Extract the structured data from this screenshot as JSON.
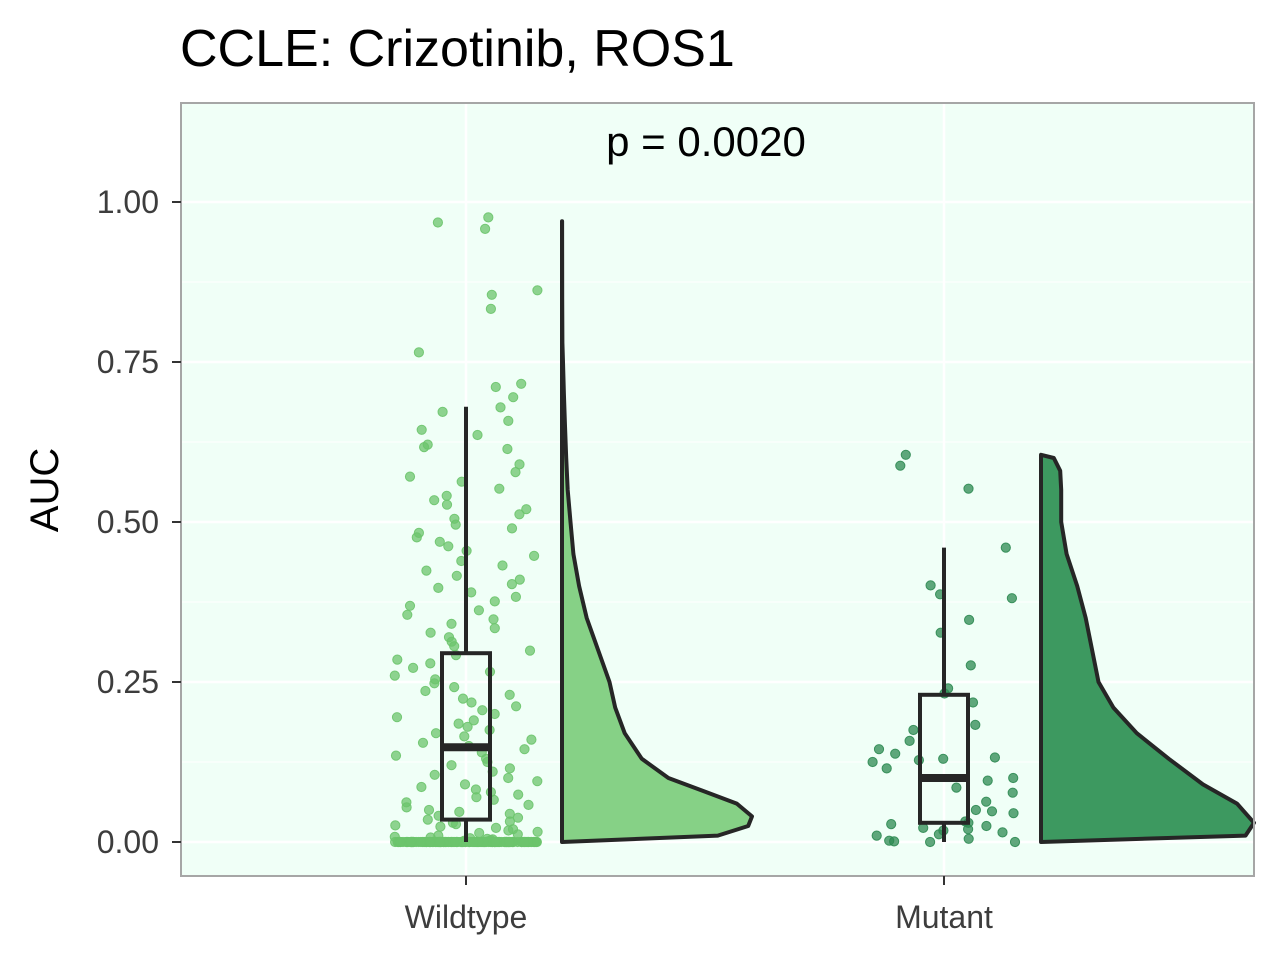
{
  "chart_data": {
    "type": "raincloud",
    "title": "CCLE: Crizotinib, ROS1",
    "xlabel": "",
    "ylabel": "AUC",
    "ylim": [
      -0.05,
      1.16
    ],
    "yticks": [
      0.0,
      0.25,
      0.5,
      0.75,
      1.0
    ],
    "ytick_labels": [
      "0.00",
      "0.25",
      "0.50",
      "0.75",
      "1.00"
    ],
    "categories": [
      "Wildtype",
      "Mutant"
    ],
    "annotation": "p = 0.0020",
    "grid": true,
    "legend": "none",
    "colors": {
      "panel_bg": "#f0fff7",
      "grid": "#ffffff",
      "border": "#a6a6a6",
      "outline": "#262626",
      "Wildtype": "#86d186",
      "Wildtype_points": "#6cc46c",
      "Mutant": "#3d9960",
      "Mutant_points": "#2e8a52"
    },
    "series": [
      {
        "name": "Wildtype",
        "box": {
          "q1": 0.035,
          "median": 0.148,
          "q3": 0.295,
          "whisker_low": 0.0,
          "whisker_high": 0.68
        },
        "density": [
          [
            0.0,
            0.0
          ],
          [
            0.01,
            0.82
          ],
          [
            0.025,
            0.98
          ],
          [
            0.04,
            1.0
          ],
          [
            0.06,
            0.92
          ],
          [
            0.08,
            0.74
          ],
          [
            0.1,
            0.56
          ],
          [
            0.13,
            0.42
          ],
          [
            0.17,
            0.33
          ],
          [
            0.21,
            0.28
          ],
          [
            0.25,
            0.25
          ],
          [
            0.3,
            0.19
          ],
          [
            0.35,
            0.13
          ],
          [
            0.4,
            0.09
          ],
          [
            0.45,
            0.06
          ],
          [
            0.5,
            0.045
          ],
          [
            0.55,
            0.03
          ],
          [
            0.6,
            0.022
          ],
          [
            0.65,
            0.016
          ],
          [
            0.7,
            0.01
          ],
          [
            0.75,
            0.005
          ],
          [
            0.78,
            0.002
          ],
          [
            0.85,
            0.001
          ],
          [
            0.97,
            0.0005
          ]
        ],
        "points": [
          0.976,
          0.968,
          0.958,
          0.862,
          0.855,
          0.833,
          0.765,
          0.716,
          0.711,
          0.695,
          0.679,
          0.672,
          0.658,
          0.644,
          0.636,
          0.621,
          0.617,
          0.614,
          0.59,
          0.578,
          0.571,
          0.563,
          0.552,
          0.541,
          0.534,
          0.527,
          0.52,
          0.512,
          0.505,
          0.496,
          0.49,
          0.483,
          0.476,
          0.469,
          0.462,
          0.455,
          0.447,
          0.439,
          0.432,
          0.424,
          0.416,
          0.41,
          0.403,
          0.397,
          0.39,
          0.383,
          0.376,
          0.369,
          0.362,
          0.355,
          0.348,
          0.341,
          0.334,
          0.327,
          0.32,
          0.313,
          0.306,
          0.299,
          0.292,
          0.285,
          0.279,
          0.272,
          0.266,
          0.26,
          0.254,
          0.248,
          0.242,
          0.236,
          0.23,
          0.224,
          0.218,
          0.212,
          0.206,
          0.2,
          0.195,
          0.19,
          0.185,
          0.18,
          0.175,
          0.17,
          0.165,
          0.16,
          0.155,
          0.15,
          0.145,
          0.14,
          0.135,
          0.13,
          0.125,
          0.12,
          0.115,
          0.11,
          0.105,
          0.1,
          0.095,
          0.09,
          0.086,
          0.082,
          0.078,
          0.074,
          0.07,
          0.066,
          0.062,
          0.058,
          0.054,
          0.05,
          0.047,
          0.044,
          0.041,
          0.038,
          0.035,
          0.032,
          0.03,
          0.028,
          0.026,
          0.024,
          0.022,
          0.02,
          0.018,
          0.016,
          0.014,
          0.012,
          0.01,
          0.008,
          0.007,
          0.006,
          0.005,
          0.004,
          0.003,
          0.002,
          0.001,
          0.0,
          0.0,
          0.0,
          0.0,
          0.0,
          0.0,
          0.0,
          0.0,
          0.0,
          0.0,
          0.0,
          0.0,
          0.0,
          0.0,
          0.0,
          0.0,
          0.0,
          0.0,
          0.0,
          0.0,
          0.0,
          0.0,
          0.0,
          0.0,
          0.0,
          0.0,
          0.0,
          0.0,
          0.0,
          0.0,
          0.0,
          0.0,
          0.0,
          0.0,
          0.0,
          0.0,
          0.0,
          0.0,
          0.0,
          0.0,
          0.0,
          0.0,
          0.0,
          0.0,
          0.0,
          0.0,
          0.0,
          0.0,
          0.0,
          0.0,
          0.0,
          0.0,
          0.0,
          0.0,
          0.0,
          0.0,
          0.0,
          0.0,
          0.0,
          0.0,
          0.0,
          0.0,
          0.0,
          0.0,
          0.0,
          0.0,
          0.0,
          0.0,
          0.0,
          0.0,
          0.0,
          0.0,
          0.0,
          0.0,
          0.0,
          0.0,
          0.0,
          0.0,
          0.0,
          0.0,
          0.0,
          0.0,
          0.0,
          0.0,
          0.0,
          0.0,
          0.0,
          0.0,
          0.0,
          0.0,
          0.0,
          0.0,
          0.0,
          0.0,
          0.0,
          0.0,
          0.0,
          0.0,
          0.0,
          0.0,
          0.0,
          0.0,
          0.0,
          0.0,
          0.0,
          0.0,
          0.0,
          0.0,
          0.0,
          0.0,
          0.0,
          0.0,
          0.0,
          0.0,
          0.0,
          0.0,
          0.0,
          0.0,
          0.0,
          0.0,
          0.0,
          0.0,
          0.0,
          0.0,
          0.0,
          0.0,
          0.0,
          0.0,
          0.0,
          0.0,
          0.0,
          0.0,
          0.0,
          0.0,
          0.0,
          0.0,
          0.0,
          0.0,
          0.0,
          0.0,
          0.0,
          0.0,
          0.0,
          0.0,
          0.0,
          0.0,
          0.0,
          0.0,
          0.0,
          0.0,
          0.0,
          0.0,
          0.0,
          0.0,
          0.0,
          0.0,
          0.0,
          0.0,
          0.0,
          0.0,
          0.0,
          0.0,
          0.0
        ]
      },
      {
        "name": "Mutant",
        "box": {
          "q1": 0.03,
          "median": 0.1,
          "q3": 0.23,
          "whisker_low": 0.0,
          "whisker_high": 0.46
        },
        "density": [
          [
            0.0,
            0.0
          ],
          [
            0.01,
            0.96
          ],
          [
            0.03,
            1.0
          ],
          [
            0.06,
            0.92
          ],
          [
            0.09,
            0.76
          ],
          [
            0.13,
            0.6
          ],
          [
            0.17,
            0.45
          ],
          [
            0.21,
            0.34
          ],
          [
            0.25,
            0.27
          ],
          [
            0.3,
            0.24
          ],
          [
            0.35,
            0.21
          ],
          [
            0.4,
            0.17
          ],
          [
            0.45,
            0.12
          ],
          [
            0.5,
            0.095
          ],
          [
            0.55,
            0.095
          ],
          [
            0.58,
            0.09
          ],
          [
            0.6,
            0.06
          ],
          [
            0.605,
            0.0
          ]
        ],
        "points": [
          0.605,
          0.588,
          0.552,
          0.46,
          0.401,
          0.387,
          0.381,
          0.347,
          0.327,
          0.276,
          0.24,
          0.232,
          0.218,
          0.183,
          0.175,
          0.158,
          0.145,
          0.138,
          0.132,
          0.13,
          0.128,
          0.125,
          0.115,
          0.1,
          0.096,
          0.085,
          0.077,
          0.063,
          0.05,
          0.048,
          0.045,
          0.032,
          0.03,
          0.028,
          0.025,
          0.022,
          0.02,
          0.018,
          0.015,
          0.012,
          0.01,
          0.005,
          0.002,
          0.001,
          0.0,
          0.0
        ]
      }
    ]
  }
}
